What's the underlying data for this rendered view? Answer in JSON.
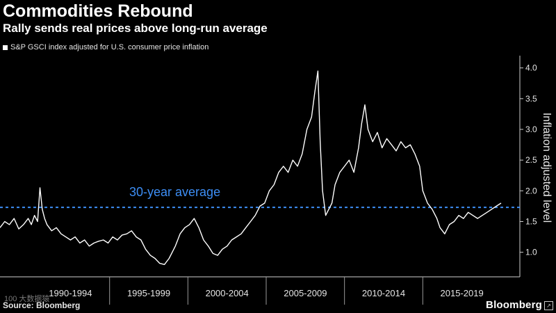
{
  "header": {
    "title": "Commodities Rebound",
    "subtitle": "Rally sends real prices above long-run average"
  },
  "footer": {
    "source": "Source: Bloomberg",
    "brand": "Bloomberg",
    "watermark": "100 大数据猿"
  },
  "colors": {
    "background": "#000000",
    "line": "#ffffff",
    "average": "#3d8ef5",
    "text": "#e6e6e6"
  },
  "chart_data": {
    "type": "line",
    "title": "Commodities Rebound",
    "subtitle": "Rally sends real prices above long-run average",
    "legend": [
      "S&P GSCI index adjusted for U.S. consumer price inflation"
    ],
    "legend_position": "top-left",
    "ylabel": "Inflation adjusted level",
    "xlabel": "",
    "ylim": [
      0.6,
      4.2
    ],
    "yticks": [
      1.0,
      1.5,
      2.0,
      2.5,
      3.0,
      3.5,
      4.0
    ],
    "ytick_labels": [
      "1.0",
      "1.5",
      "2.0",
      "2.5",
      "3.0",
      "3.5",
      "4.0"
    ],
    "xlim": [
      1988.0,
      2021.2
    ],
    "categories": [
      "1990-1994",
      "1995-1999",
      "2000-2004",
      "2005-2009",
      "2010-2014",
      "2015-2019"
    ],
    "category_bounds": [
      1990,
      1995,
      2000,
      2005,
      2010,
      2015,
      2020
    ],
    "grid": false,
    "reference_line": {
      "label": "30-year average",
      "value": 1.73
    },
    "series": [
      {
        "name": "S&P GSCI index adjusted for U.S. consumer price inflation",
        "x": [
          1988.0,
          1988.3,
          1988.6,
          1988.9,
          1989.2,
          1989.5,
          1989.8,
          1990.0,
          1990.2,
          1990.4,
          1990.55,
          1990.7,
          1990.85,
          1991.0,
          1991.3,
          1991.6,
          1991.9,
          1992.2,
          1992.5,
          1992.8,
          1993.1,
          1993.4,
          1993.7,
          1994.0,
          1994.3,
          1994.6,
          1994.9,
          1995.2,
          1995.5,
          1995.8,
          1996.1,
          1996.4,
          1996.7,
          1997.0,
          1997.3,
          1997.6,
          1997.9,
          1998.2,
          1998.5,
          1998.8,
          1999.0,
          1999.2,
          1999.5,
          1999.8,
          2000.1,
          2000.4,
          2000.7,
          2001.0,
          2001.3,
          2001.6,
          2001.9,
          2002.2,
          2002.5,
          2002.8,
          2003.1,
          2003.4,
          2003.7,
          2004.0,
          2004.3,
          2004.6,
          2004.9,
          2005.2,
          2005.5,
          2005.8,
          2006.1,
          2006.4,
          2006.7,
          2007.0,
          2007.3,
          2007.6,
          2007.9,
          2008.1,
          2008.3,
          2008.45,
          2008.6,
          2008.8,
          2009.0,
          2009.2,
          2009.4,
          2009.7,
          2010.0,
          2010.3,
          2010.6,
          2010.9,
          2011.1,
          2011.3,
          2011.5,
          2011.8,
          2012.1,
          2012.4,
          2012.7,
          2013.0,
          2013.3,
          2013.6,
          2013.9,
          2014.2,
          2014.5,
          2014.8,
          2015.0,
          2015.3,
          2015.6,
          2015.9,
          2016.1,
          2016.4,
          2016.7,
          2017.0,
          2017.3,
          2017.6,
          2017.9,
          2018.2,
          2018.5,
          2018.8,
          2019.1,
          2019.4,
          2019.7,
          2020.0
        ],
        "values": [
          1.4,
          1.5,
          1.45,
          1.55,
          1.38,
          1.45,
          1.55,
          1.45,
          1.6,
          1.5,
          2.05,
          1.7,
          1.55,
          1.45,
          1.35,
          1.4,
          1.3,
          1.25,
          1.2,
          1.25,
          1.15,
          1.2,
          1.1,
          1.15,
          1.18,
          1.2,
          1.15,
          1.25,
          1.2,
          1.28,
          1.3,
          1.35,
          1.25,
          1.2,
          1.05,
          0.95,
          0.9,
          0.82,
          0.8,
          0.9,
          1.0,
          1.1,
          1.3,
          1.4,
          1.45,
          1.55,
          1.4,
          1.2,
          1.1,
          0.98,
          0.95,
          1.05,
          1.1,
          1.2,
          1.25,
          1.3,
          1.4,
          1.5,
          1.6,
          1.75,
          1.8,
          2.0,
          2.1,
          2.3,
          2.4,
          2.3,
          2.5,
          2.4,
          2.6,
          3.0,
          3.2,
          3.6,
          3.95,
          2.8,
          2.0,
          1.6,
          1.7,
          1.8,
          2.1,
          2.3,
          2.4,
          2.5,
          2.3,
          2.7,
          3.1,
          3.4,
          3.0,
          2.8,
          2.95,
          2.7,
          2.85,
          2.75,
          2.65,
          2.8,
          2.7,
          2.75,
          2.6,
          2.4,
          2.0,
          1.8,
          1.7,
          1.55,
          1.4,
          1.3,
          1.45,
          1.5,
          1.6,
          1.55,
          1.65,
          1.6,
          1.55,
          1.6,
          1.65,
          1.7,
          1.75,
          1.8
        ]
      }
    ]
  }
}
